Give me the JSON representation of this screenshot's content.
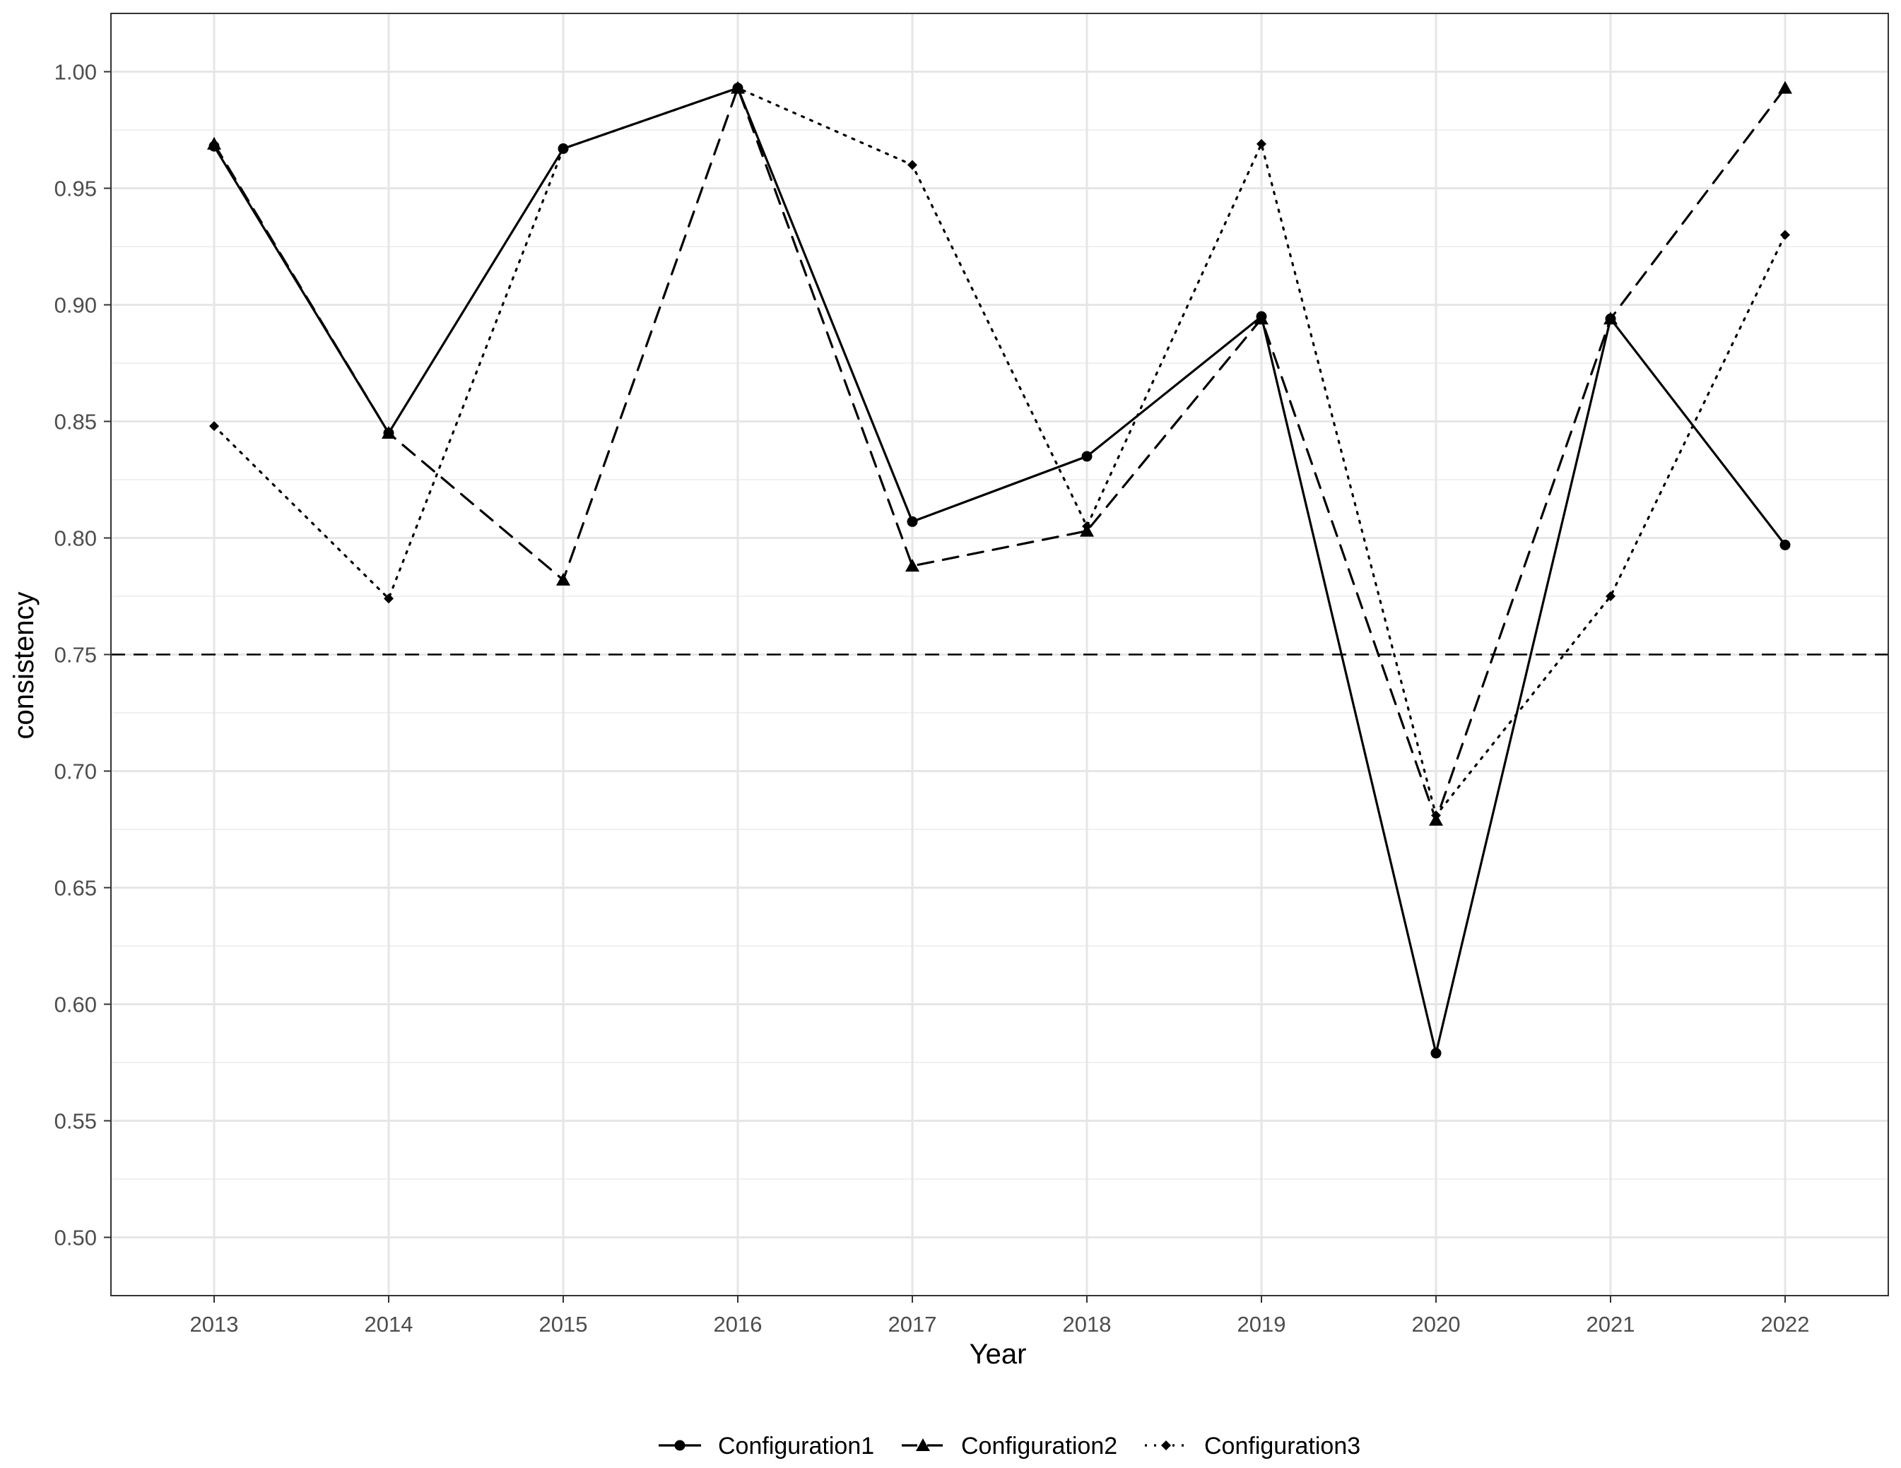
{
  "chart_data": {
    "type": "line",
    "title": "",
    "xlabel": "Year",
    "ylabel": "consistency",
    "x": [
      2013,
      2014,
      2015,
      2016,
      2017,
      2018,
      2019,
      2020,
      2021,
      2022
    ],
    "ylim": [
      0.475,
      1.025
    ],
    "yticks": [
      0.5,
      0.55,
      0.6,
      0.65,
      0.7,
      0.75,
      0.8,
      0.85,
      0.9,
      0.95,
      1.0
    ],
    "ytick_labels": [
      "0.50",
      "0.55",
      "0.60",
      "0.65",
      "0.70",
      "0.75",
      "0.80",
      "0.85",
      "0.90",
      "0.95",
      "1.00"
    ],
    "xtick_labels": [
      "2013",
      "2014",
      "2015",
      "2016",
      "2017",
      "2018",
      "2019",
      "2020",
      "2021",
      "2022"
    ],
    "reference_line": {
      "y": 0.75,
      "style": "dashed"
    },
    "grid": true,
    "legend_position": "bottom",
    "series": [
      {
        "name": "Configuration1",
        "line_style": "solid",
        "marker": "circle",
        "values": [
          0.968,
          0.845,
          0.967,
          0.993,
          0.807,
          0.835,
          0.895,
          0.579,
          0.894,
          0.797
        ]
      },
      {
        "name": "Configuration2",
        "line_style": "dashed",
        "marker": "triangle",
        "values": [
          0.969,
          0.845,
          0.782,
          0.993,
          0.788,
          0.803,
          0.894,
          0.679,
          0.894,
          0.993
        ]
      },
      {
        "name": "Configuration3",
        "line_style": "dotted",
        "marker": "diamond",
        "values": [
          0.848,
          0.774,
          0.967,
          0.993,
          0.96,
          0.805,
          0.969,
          0.681,
          0.775,
          0.93
        ]
      }
    ]
  }
}
